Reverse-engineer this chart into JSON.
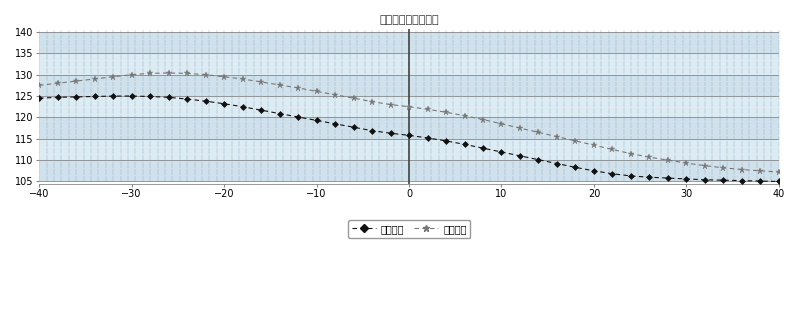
{
  "title": "加力状态推力公差带",
  "x_min": -40,
  "x_max": 40,
  "y_min": 105,
  "y_max": 140,
  "y_ticks": [
    105,
    110,
    115,
    120,
    125,
    130,
    135,
    140
  ],
  "x_ticks": [
    -40,
    -30,
    -20,
    -10,
    0,
    10,
    20,
    30,
    40
  ],
  "legend_labels": [
    "推力下限",
    "推力上限"
  ],
  "background_color": "#ffffff",
  "lower_color": "#111111",
  "upper_color": "#777777",
  "lower_x": [
    -40,
    -38,
    -36,
    -34,
    -32,
    -30,
    -28,
    -26,
    -24,
    -22,
    -20,
    -18,
    -16,
    -14,
    -12,
    -10,
    -8,
    -6,
    -4,
    -2,
    0,
    2,
    4,
    6,
    8,
    10,
    12,
    14,
    16,
    18,
    20,
    22,
    24,
    26,
    28,
    30,
    32,
    34,
    36,
    38,
    40
  ],
  "lower_y": [
    124.5,
    124.7,
    124.8,
    124.9,
    125.0,
    125.0,
    124.9,
    124.7,
    124.3,
    123.8,
    123.2,
    122.5,
    121.7,
    120.9,
    120.1,
    119.3,
    118.5,
    117.7,
    116.9,
    116.3,
    115.8,
    115.2,
    114.5,
    113.7,
    112.8,
    111.9,
    111.0,
    110.1,
    109.2,
    108.3,
    107.5,
    106.8,
    106.3,
    106.0,
    105.8,
    105.6,
    105.4,
    105.3,
    105.2,
    105.1,
    105.0
  ],
  "upper_x": [
    -40,
    -38,
    -36,
    -34,
    -32,
    -30,
    -28,
    -26,
    -24,
    -22,
    -20,
    -18,
    -16,
    -14,
    -12,
    -10,
    -8,
    -6,
    -4,
    -2,
    0,
    2,
    4,
    6,
    8,
    10,
    12,
    14,
    16,
    18,
    20,
    22,
    24,
    26,
    28,
    30,
    32,
    34,
    36,
    38,
    40
  ],
  "upper_y": [
    127.5,
    128.0,
    128.5,
    129.0,
    129.5,
    130.0,
    130.3,
    130.4,
    130.3,
    130.0,
    129.5,
    129.0,
    128.3,
    127.6,
    126.9,
    126.1,
    125.3,
    124.5,
    123.7,
    123.0,
    122.5,
    121.9,
    121.2,
    120.4,
    119.5,
    118.5,
    117.5,
    116.5,
    115.5,
    114.5,
    113.5,
    112.5,
    111.5,
    110.7,
    110.0,
    109.3,
    108.7,
    108.2,
    107.8,
    107.5,
    107.2
  ]
}
